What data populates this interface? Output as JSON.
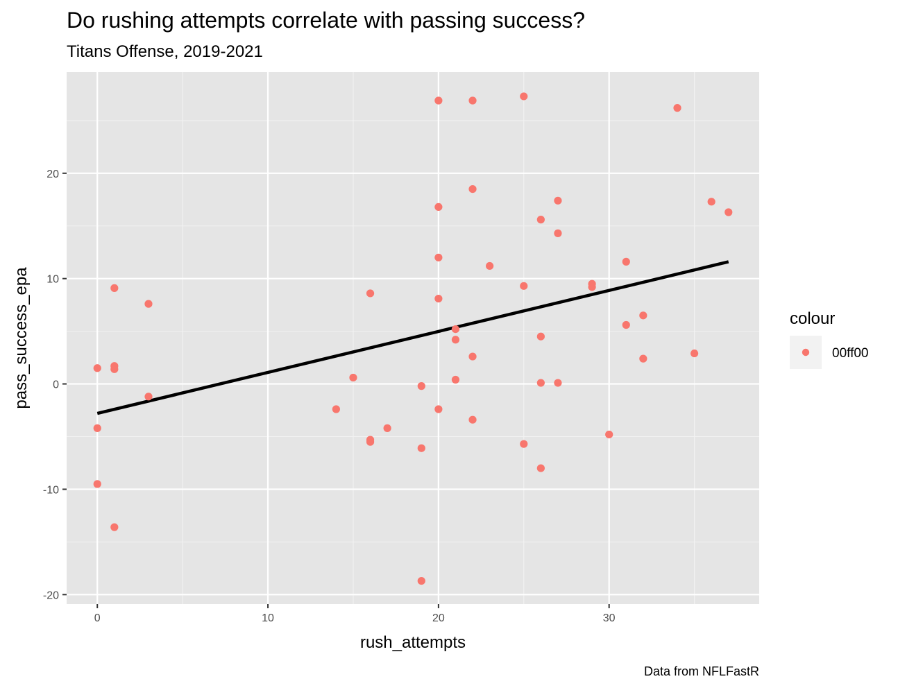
{
  "chart_data": {
    "type": "scatter",
    "title": "Do rushing attempts correlate with passing success?",
    "subtitle": "Titans Offense, 2019-2021",
    "caption": "Data from NFLFastR",
    "xlabel": "rush_attempts",
    "ylabel": "pass_success_epa",
    "xlim": [
      -1.8,
      38.8
    ],
    "ylim": [
      -20.9,
      29.6
    ],
    "x_ticks": [
      0,
      10,
      20,
      30
    ],
    "x_tick_labels": [
      "0",
      "10",
      "20",
      "30"
    ],
    "y_ticks": [
      -20,
      -10,
      0,
      10,
      20
    ],
    "y_tick_labels": [
      "-20",
      "-10",
      "0",
      "10",
      "20"
    ],
    "grid": true,
    "legend": {
      "title": "colour",
      "position": "right",
      "entries": [
        {
          "label": "00ff00",
          "color": "#F8766D"
        }
      ]
    },
    "point_color": "#F8766D",
    "line_color": "#000000",
    "panel_background": "#E5E5E5",
    "series": [
      {
        "type": "scatter",
        "points": [
          {
            "x": 0,
            "y": 1.5
          },
          {
            "x": 0,
            "y": -4.2
          },
          {
            "x": 0,
            "y": -9.5
          },
          {
            "x": 1,
            "y": 9.1
          },
          {
            "x": 1,
            "y": 1.7
          },
          {
            "x": 1,
            "y": 1.4
          },
          {
            "x": 1,
            "y": -13.6
          },
          {
            "x": 3,
            "y": 7.6
          },
          {
            "x": 3,
            "y": -1.2
          },
          {
            "x": 14,
            "y": -2.4
          },
          {
            "x": 15,
            "y": 0.6
          },
          {
            "x": 16,
            "y": 8.6
          },
          {
            "x": 16,
            "y": -5.3
          },
          {
            "x": 16,
            "y": -5.5
          },
          {
            "x": 17,
            "y": -4.2
          },
          {
            "x": 19,
            "y": -0.2
          },
          {
            "x": 19,
            "y": -6.1
          },
          {
            "x": 19,
            "y": -18.7
          },
          {
            "x": 20,
            "y": 26.9
          },
          {
            "x": 20,
            "y": 16.8
          },
          {
            "x": 20,
            "y": 12.0
          },
          {
            "x": 20,
            "y": 8.1
          },
          {
            "x": 20,
            "y": -2.4
          },
          {
            "x": 21,
            "y": 5.2
          },
          {
            "x": 21,
            "y": 4.2
          },
          {
            "x": 21,
            "y": 0.4
          },
          {
            "x": 22,
            "y": 26.9
          },
          {
            "x": 22,
            "y": 18.5
          },
          {
            "x": 22,
            "y": 2.6
          },
          {
            "x": 22,
            "y": -3.4
          },
          {
            "x": 23,
            "y": 11.2
          },
          {
            "x": 25,
            "y": 27.3
          },
          {
            "x": 25,
            "y": 9.3
          },
          {
            "x": 25,
            "y": -5.7
          },
          {
            "x": 26,
            "y": 15.6
          },
          {
            "x": 26,
            "y": 4.5
          },
          {
            "x": 26,
            "y": 0.1
          },
          {
            "x": 26,
            "y": -8.0
          },
          {
            "x": 27,
            "y": 17.4
          },
          {
            "x": 27,
            "y": 14.3
          },
          {
            "x": 27,
            "y": 0.1
          },
          {
            "x": 29,
            "y": 9.5
          },
          {
            "x": 29,
            "y": 9.2
          },
          {
            "x": 30,
            "y": -4.8
          },
          {
            "x": 31,
            "y": 11.6
          },
          {
            "x": 31,
            "y": 5.6
          },
          {
            "x": 32,
            "y": 6.5
          },
          {
            "x": 32,
            "y": 2.4
          },
          {
            "x": 34,
            "y": 26.2
          },
          {
            "x": 35,
            "y": 2.9
          },
          {
            "x": 36,
            "y": 17.3
          },
          {
            "x": 37,
            "y": 16.3
          }
        ]
      },
      {
        "type": "line",
        "points": [
          {
            "x": 0,
            "y": -2.8
          },
          {
            "x": 37,
            "y": 11.6
          }
        ]
      }
    ]
  }
}
